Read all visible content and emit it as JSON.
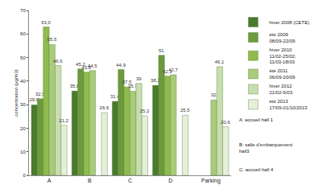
{
  "chart_data": {
    "type": "bar",
    "y_label": "concentration (µg/m3)",
    "categories": [
      "A",
      "B",
      "C",
      "D",
      "Parking"
    ],
    "series": [
      {
        "name": "hiver 2008 (CETE)",
        "color": "#4a7a2c",
        "values": [
          29.9,
          35.8,
          31.4,
          38.2,
          null
        ],
        "value_labels": [
          "29,9",
          "35,8",
          "31,4",
          "38,2",
          null
        ]
      },
      {
        "name": "été 2009\n08/09-22/09",
        "color": "#6b9b3c",
        "values": [
          32.5,
          45.2,
          44.9,
          51,
          null
        ],
        "value_labels": [
          "32,5",
          "45,2",
          "44,9",
          "51",
          null
        ]
      },
      {
        "name": "hiver 2010\n11/02-25/02;\n11/03-18/03",
        "color": "#8fbc4c",
        "values": [
          63.0,
          43.8,
          37.5,
          42.1,
          null
        ],
        "value_labels": [
          "63,0",
          "43,8",
          "37,5",
          "42,1",
          null
        ]
      },
      {
        "name": "été 2011\n06/09-20/09",
        "color": "#a9cc7a",
        "values": [
          55.5,
          44.5,
          35.7,
          42.7,
          32
        ],
        "value_labels": [
          "55,5",
          "44,5",
          "35,7",
          "42,7",
          "32"
        ]
      },
      {
        "name": "hiver 2012\n21/02-6/03",
        "color": "#c7deae",
        "values": [
          46.6,
          null,
          39,
          null,
          46.1
        ],
        "value_labels": [
          "46,6",
          null,
          "39",
          null,
          "46,1"
        ]
      },
      {
        "name": "été 2013\n17/09-01/10/2013",
        "color": "#e6efda",
        "values": [
          21.2,
          26.6,
          25.2,
          25.5,
          20.6
        ],
        "value_labels": [
          "21,2",
          "26,6",
          "25,2",
          "25,5",
          "20,6"
        ]
      }
    ],
    "notes": [
      "A: accueil hall 1",
      "B: salle d'embarquement\nhall3",
      "C: accueil hall 4"
    ],
    "ylim": [
      0,
      70
    ],
    "yticks": [
      0,
      10,
      20,
      30,
      40,
      50,
      60,
      70
    ],
    "grid": false,
    "legend": "right",
    "data_labels": true
  }
}
